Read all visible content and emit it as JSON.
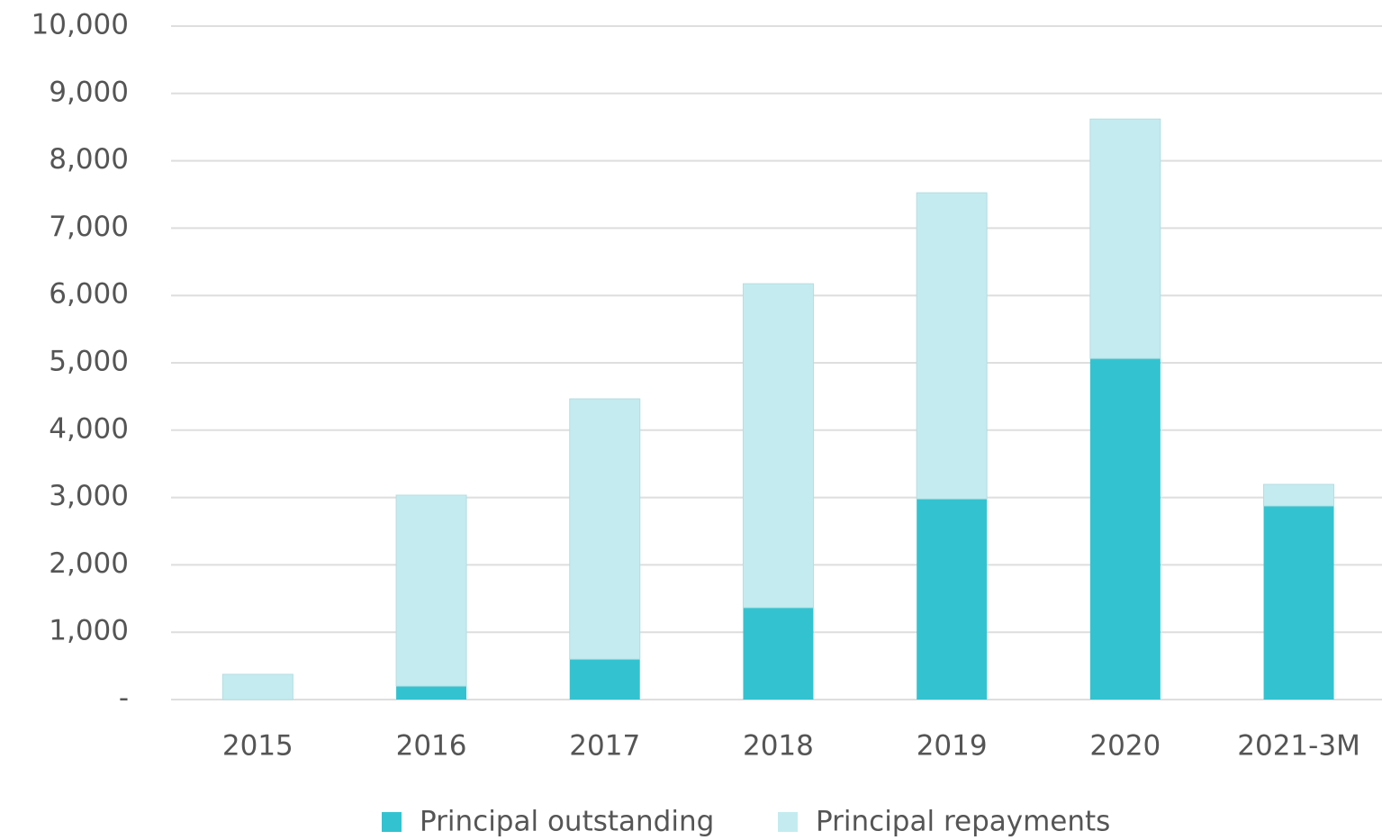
{
  "chart_data": {
    "type": "stacked_bar",
    "categories": [
      "2015",
      "2016",
      "2017",
      "2018",
      "2019",
      "2020",
      "2021-3M"
    ],
    "series": [
      {
        "name": "Principal outstanding",
        "color": "#33c3d0",
        "values": [
          0,
          200,
          600,
          1365,
          2980,
          5065,
          2875
        ]
      },
      {
        "name": "Principal repayments",
        "color": "#c4ecf0",
        "values": [
          375,
          2835,
          3865,
          4810,
          4545,
          3555,
          320
        ]
      }
    ],
    "ylim": [
      0,
      10000
    ],
    "yticks": [
      {
        "value": 0,
        "label": "-"
      },
      {
        "value": 1000,
        "label": "1,000"
      },
      {
        "value": 2000,
        "label": "2,000"
      },
      {
        "value": 3000,
        "label": "3,000"
      },
      {
        "value": 4000,
        "label": "4,000"
      },
      {
        "value": 5000,
        "label": "5,000"
      },
      {
        "value": 6000,
        "label": "6,000"
      },
      {
        "value": 7000,
        "label": "7,000"
      },
      {
        "value": 8000,
        "label": "8,000"
      },
      {
        "value": 9000,
        "label": "9,000"
      },
      {
        "value": 10000,
        "label": "10,000"
      }
    ],
    "grid": true,
    "legend": "bottom"
  }
}
